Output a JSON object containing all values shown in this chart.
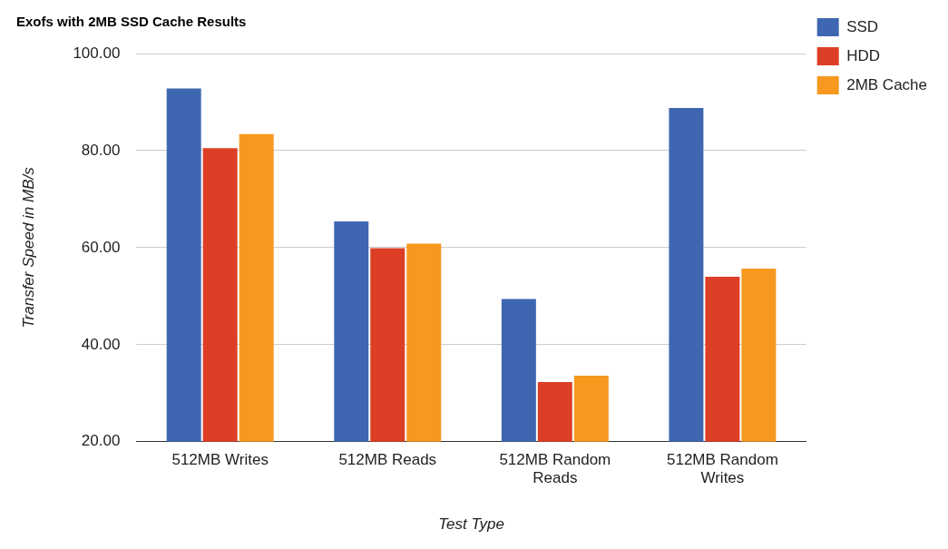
{
  "chart_data": {
    "type": "bar",
    "title": "Exofs with 2MB SSD Cache Results",
    "xlabel": "Test Type",
    "ylabel": "Transfer Speed in MB/s",
    "categories": [
      "512MB Writes",
      "512MB Reads",
      "512MB Random Reads",
      "512MB Random Writes"
    ],
    "series": [
      {
        "name": "SSD",
        "color": "#3f67b1",
        "values": [
          92.8,
          65.4,
          49.4,
          88.8
        ]
      },
      {
        "name": "HDD",
        "color": "#dc3f26",
        "values": [
          80.5,
          59.9,
          32.3,
          54.0
        ]
      },
      {
        "name": "2MB Cache",
        "color": "#f7991f",
        "values": [
          83.4,
          60.8,
          33.6,
          55.7
        ]
      }
    ],
    "ylim": [
      20,
      100
    ],
    "yticks": [
      {
        "value": 20,
        "label": "20.00"
      },
      {
        "value": 40,
        "label": "40.00"
      },
      {
        "value": 60,
        "label": "60.00"
      },
      {
        "value": 80,
        "label": "80.00"
      },
      {
        "value": 100,
        "label": "100.00"
      }
    ],
    "grid": "y",
    "legend": "top right"
  }
}
